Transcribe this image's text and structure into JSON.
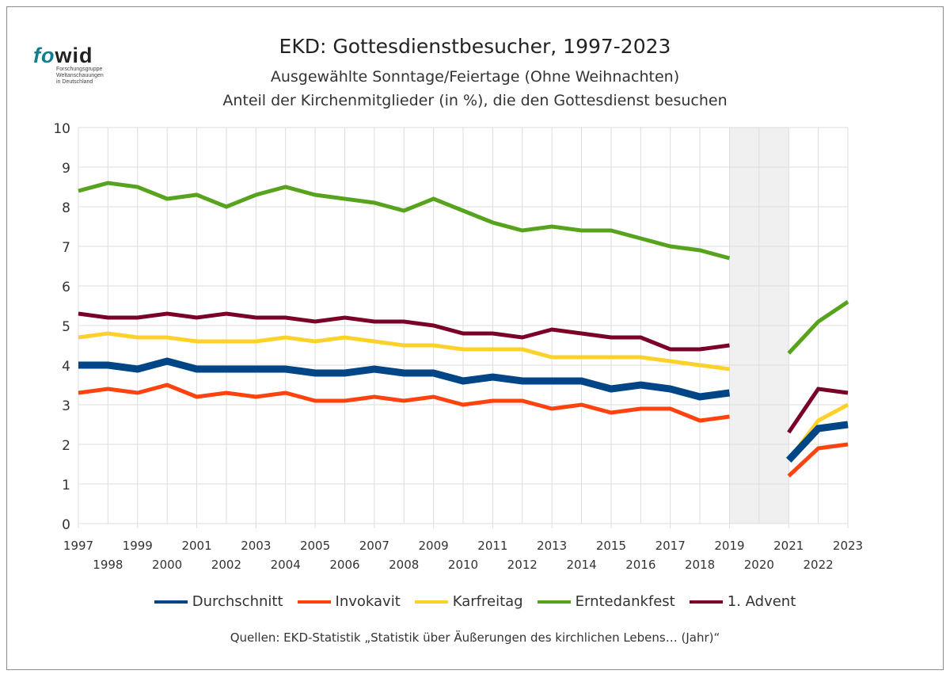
{
  "logo": {
    "part1": "fo",
    "part2": "wid",
    "lines": [
      "Forschungsgruppe",
      "Weltanschauungen",
      "in Deutschland"
    ]
  },
  "chart_data": {
    "type": "line",
    "title": "EKD: Gottesdienstbesucher, 1997-2023",
    "subtitle": [
      "Ausgewählte Sonntage/Feiertage (Ohne Weihnachten)",
      "Anteil der Kirchenmitglieder (in %), die den Gottesdienst besuchen"
    ],
    "xlabel": "",
    "ylabel": "",
    "ylim": [
      0,
      10
    ],
    "yticks": [
      0,
      1,
      2,
      3,
      4,
      5,
      6,
      7,
      8,
      9,
      10
    ],
    "x": [
      1997,
      1998,
      1999,
      2000,
      2001,
      2002,
      2003,
      2004,
      2005,
      2006,
      2007,
      2008,
      2009,
      2010,
      2011,
      2012,
      2013,
      2014,
      2015,
      2016,
      2017,
      2018,
      2019,
      2020,
      2021,
      2022,
      2023
    ],
    "grid": true,
    "shaded_gap": {
      "from": 2019,
      "to": 2021
    },
    "legend_position": "bottom",
    "series": [
      {
        "name": "Erntedankfest",
        "color": "#57a31e",
        "values": [
          8.4,
          8.6,
          8.5,
          8.2,
          8.3,
          8.0,
          8.3,
          8.5,
          8.3,
          8.2,
          8.1,
          7.9,
          8.2,
          7.9,
          7.6,
          7.4,
          7.5,
          7.4,
          7.4,
          7.2,
          7.0,
          6.9,
          6.7,
          null,
          4.3,
          5.1,
          5.6
        ]
      },
      {
        "name": "1. Advent",
        "color": "#7a0027",
        "values": [
          5.3,
          5.2,
          5.2,
          5.3,
          5.2,
          5.3,
          5.2,
          5.2,
          5.1,
          5.2,
          5.1,
          5.1,
          5.0,
          4.8,
          4.8,
          4.7,
          4.9,
          4.8,
          4.7,
          4.7,
          4.4,
          4.4,
          4.5,
          null,
          2.3,
          3.4,
          3.3
        ]
      },
      {
        "name": "Karfreitag",
        "color": "#fcd22a",
        "values": [
          4.7,
          4.8,
          4.7,
          4.7,
          4.6,
          4.6,
          4.6,
          4.7,
          4.6,
          4.7,
          4.6,
          4.5,
          4.5,
          4.4,
          4.4,
          4.4,
          4.2,
          4.2,
          4.2,
          4.2,
          4.1,
          4.0,
          3.9,
          null,
          1.6,
          2.6,
          3.0
        ]
      },
      {
        "name": "Durchschnitt",
        "color": "#004586",
        "values": [
          4.0,
          4.0,
          3.9,
          4.1,
          3.9,
          3.9,
          3.9,
          3.9,
          3.8,
          3.8,
          3.9,
          3.8,
          3.8,
          3.6,
          3.7,
          3.6,
          3.6,
          3.6,
          3.4,
          3.5,
          3.4,
          3.2,
          3.3,
          null,
          1.6,
          2.4,
          2.5
        ]
      },
      {
        "name": "Invokavit",
        "color": "#ff420e",
        "values": [
          3.3,
          3.4,
          3.3,
          3.5,
          3.2,
          3.3,
          3.2,
          3.3,
          3.1,
          3.1,
          3.2,
          3.1,
          3.2,
          3.0,
          3.1,
          3.1,
          2.9,
          3.0,
          2.8,
          2.9,
          2.9,
          2.6,
          2.7,
          null,
          1.2,
          1.9,
          2.0
        ]
      }
    ]
  },
  "legend": [
    {
      "label": "Durchschnitt",
      "color": "#004586"
    },
    {
      "label": "Invokavit",
      "color": "#ff420e"
    },
    {
      "label": "Karfreitag",
      "color": "#fcd22a"
    },
    {
      "label": "Erntedankfest",
      "color": "#57a31e"
    },
    {
      "label": "1. Advent",
      "color": "#7a0027"
    }
  ],
  "source": "Quellen: EKD-Statistik „Statistik über Äußerungen des kirchlichen Lebens… (Jahr)“"
}
